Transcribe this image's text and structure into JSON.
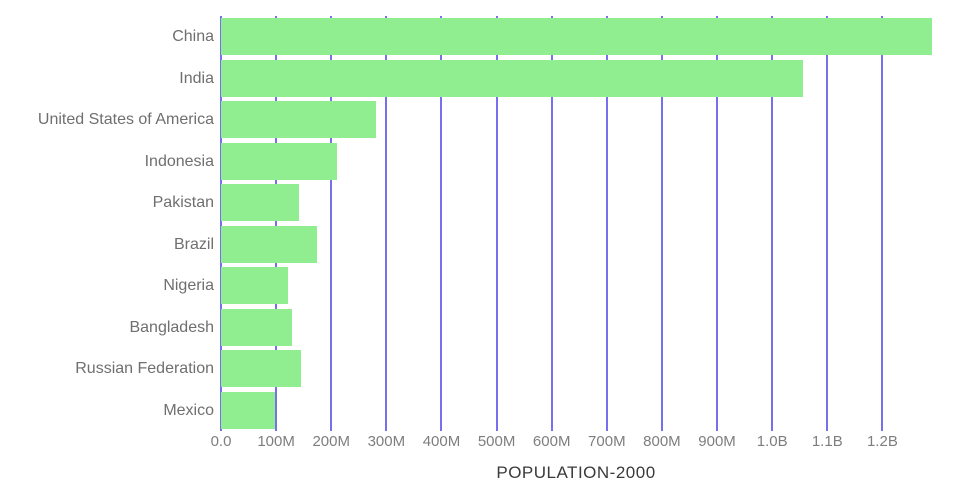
{
  "chart_data": {
    "type": "bar",
    "orientation": "horizontal",
    "title": "POPULATION-2000",
    "xlabel": "",
    "ylabel": "",
    "categories": [
      "China",
      "India",
      "United States of America",
      "Indonesia",
      "Pakistan",
      "Brazil",
      "Nigeria",
      "Bangladesh",
      "Russian Federation",
      "Mexico"
    ],
    "values": [
      1290000000,
      1056000000,
      282000000,
      211000000,
      142000000,
      175000000,
      122000000,
      129000000,
      146000000,
      98000000
    ],
    "xlim": [
      0,
      1290000000
    ],
    "x_ticks": [
      {
        "value": 0,
        "label": "0.0"
      },
      {
        "value": 100000000,
        "label": "100M"
      },
      {
        "value": 200000000,
        "label": "200M"
      },
      {
        "value": 300000000,
        "label": "300M"
      },
      {
        "value": 400000000,
        "label": "400M"
      },
      {
        "value": 500000000,
        "label": "500M"
      },
      {
        "value": 600000000,
        "label": "600M"
      },
      {
        "value": 700000000,
        "label": "700M"
      },
      {
        "value": 800000000,
        "label": "800M"
      },
      {
        "value": 900000000,
        "label": "900M"
      },
      {
        "value": 1000000000,
        "label": "1.0B"
      },
      {
        "value": 1100000000,
        "label": "1.1B"
      },
      {
        "value": 1200000000,
        "label": "1.2B"
      }
    ],
    "grid": true,
    "legend": false,
    "colors": {
      "bar": "#90EE90",
      "gridline": "#7770EE",
      "category_label": "#6F6F6F",
      "tick_label": "#7E7E7E",
      "title": "#3A3A3A",
      "background": "#FFFFFF"
    }
  }
}
